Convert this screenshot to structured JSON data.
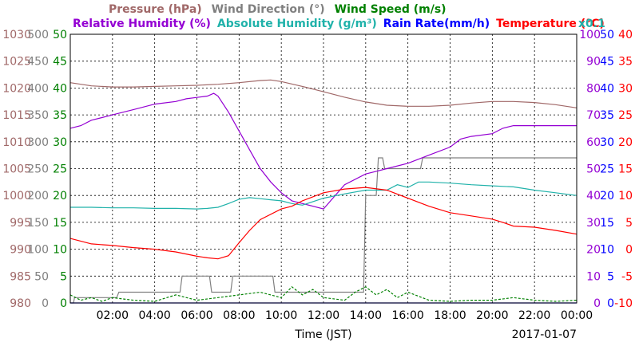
{
  "chart_data": {
    "type": "line",
    "date": "2017-01-07",
    "xlabel": "Time (JST)",
    "x_ticks": [
      "02:00",
      "04:00",
      "06:00",
      "08:00",
      "10:00",
      "12:00",
      "14:00",
      "16:00",
      "18:00",
      "20:00",
      "22:00",
      "00:00"
    ],
    "xlim_hours": [
      0,
      24
    ],
    "grid": true,
    "legend_row1": [
      {
        "text": "Pressure (hPa)",
        "color": "#a06868"
      },
      {
        "text": "Wind Direction (°)",
        "color": "#808080"
      },
      {
        "text": "Wind Speed (m/s)",
        "color": "#008000"
      }
    ],
    "legend_row2": [
      {
        "text": "Relative Humidity (%)",
        "color": "#9400d3"
      },
      {
        "text": "Absolute Humidity (g/m³)",
        "color": "#20b2aa"
      },
      {
        "text": "Rain Rate(mm/h)",
        "color": "#0000ff"
      },
      {
        "text": "Temperature (°C)",
        "color": "#ff0000"
      },
      {
        "text": "x0.1",
        "color": "#20b2aa"
      }
    ],
    "axes": {
      "pressure": {
        "ticks": [
          "1030",
          "1025",
          "1020",
          "1015",
          "1010",
          "1005",
          "1000",
          "995",
          "990",
          "985",
          "980"
        ],
        "ylim": [
          980,
          1030
        ],
        "color": "#a06868"
      },
      "wind_direction": {
        "ticks": [
          "500",
          "450",
          "400",
          "350",
          "300",
          "250",
          "200",
          "150",
          "100",
          "50",
          "0"
        ],
        "ylim": [
          0,
          500
        ],
        "color": "#808080"
      },
      "wind_speed": {
        "ticks": [
          "50",
          "45",
          "40",
          "35",
          "30",
          "25",
          "20",
          "15",
          "10",
          "5",
          "0"
        ],
        "ylim": [
          0,
          50
        ],
        "color": "#008000"
      },
      "relative_humidity": {
        "ticks": [
          "100",
          "90",
          "80",
          "70",
          "60",
          "50",
          "40",
          "30",
          "20",
          "10",
          "0"
        ],
        "ylim": [
          0,
          100
        ],
        "color": "#9400d3"
      },
      "rain_rate": {
        "ticks": [
          "50",
          "45",
          "40",
          "35",
          "30",
          "25",
          "20",
          "15",
          "10",
          "5",
          "0"
        ],
        "ylim": [
          0,
          50
        ],
        "color": "#0000ff"
      },
      "temperature": {
        "ticks": [
          "40",
          "35",
          "30",
          "25",
          "20",
          "15",
          "10",
          "5",
          "0",
          "-5",
          "-10"
        ],
        "ylim": [
          -10,
          40
        ],
        "color": "#ff0000"
      }
    },
    "series": [
      {
        "name": "Pressure (hPa)",
        "axis": "pressure",
        "color": "#a06868",
        "x": [
          0,
          1,
          2,
          3,
          4,
          5,
          6,
          7,
          8,
          9,
          9.5,
          10,
          11,
          12,
          13,
          14,
          15,
          16,
          17,
          18,
          19,
          20,
          21,
          22,
          23,
          24
        ],
        "y": [
          1021,
          1020.4,
          1020.2,
          1020.2,
          1020.3,
          1020.4,
          1020.5,
          1020.7,
          1021.0,
          1021.4,
          1021.5,
          1021.2,
          1020.3,
          1019.3,
          1018.3,
          1017.4,
          1016.8,
          1016.6,
          1016.6,
          1016.8,
          1017.2,
          1017.5,
          1017.5,
          1017.3,
          1016.9,
          1016.3
        ]
      },
      {
        "name": "Wind Direction (°)",
        "axis": "wind_direction",
        "color": "#808080",
        "x": [
          0,
          0.15,
          0.2,
          2.2,
          2.3,
          5.2,
          5.3,
          6.6,
          6.7,
          7.6,
          7.7,
          9.6,
          9.7,
          13.9,
          14.0,
          14.5,
          14.6,
          14.8,
          14.9,
          16.6,
          16.7,
          20.7,
          20.8,
          24
        ],
        "y": [
          0,
          0,
          10,
          10,
          20,
          20,
          50,
          50,
          20,
          20,
          50,
          50,
          20,
          20,
          200,
          200,
          270,
          270,
          250,
          250,
          270,
          270,
          270,
          270
        ]
      },
      {
        "name": "Wind Speed (m/s)",
        "axis": "wind_speed",
        "color": "#008000",
        "x": [
          0,
          0.5,
          1,
          1.5,
          2,
          3,
          4,
          5,
          6,
          7,
          8,
          9,
          10,
          10.5,
          11,
          11.5,
          12,
          13,
          13.5,
          14,
          14.5,
          15,
          15.5,
          16,
          17,
          18,
          19,
          20,
          21,
          22,
          23,
          24
        ],
        "y": [
          1.5,
          0.5,
          1,
          0.3,
          1,
          0.5,
          0.3,
          1.5,
          0.5,
          1,
          1.5,
          2,
          1,
          3,
          1.5,
          2.5,
          1,
          0.5,
          2,
          3,
          1.5,
          2.5,
          1,
          2,
          0.5,
          0.3,
          0.5,
          0.5,
          1,
          0.5,
          0.3,
          0.5
        ]
      },
      {
        "name": "Relative Humidity (%)",
        "axis": "relative_humidity",
        "color": "#9400d3",
        "x": [
          0,
          0.5,
          1,
          1.5,
          2,
          3,
          4,
          5,
          5.5,
          6,
          6.5,
          6.8,
          7,
          7.5,
          8,
          8.5,
          9,
          9.5,
          10,
          10.5,
          11,
          12,
          13,
          14,
          14.5,
          15,
          16,
          17,
          18,
          18.5,
          19,
          20,
          20.5,
          21,
          22,
          23,
          24
        ],
        "y": [
          65,
          66,
          68,
          69,
          70,
          72,
          74,
          75,
          76,
          76.5,
          77,
          78,
          77,
          71,
          64,
          57,
          50,
          45,
          41,
          38,
          37,
          35,
          44,
          48,
          49,
          50,
          52,
          55,
          58,
          61,
          62,
          63,
          65,
          66,
          66,
          66,
          66
        ]
      },
      {
        "name": "Absolute Humidity (g/m³)",
        "axis": "wind_direction",
        "color": "#20b2aa",
        "x": [
          0,
          1,
          2,
          3,
          4,
          5,
          6,
          6.5,
          7,
          7.5,
          8,
          8.5,
          9,
          9.5,
          10,
          10.5,
          11,
          12,
          13,
          14,
          15,
          15.5,
          16,
          16.5,
          17,
          18,
          19,
          20,
          21,
          22,
          23,
          24
        ],
        "y": [
          178,
          178,
          177,
          177,
          176,
          176,
          175,
          176,
          178,
          185,
          193,
          196,
          194,
          192,
          190,
          185,
          182,
          195,
          203,
          210,
          210,
          220,
          215,
          225,
          225,
          223,
          220,
          218,
          216,
          210,
          205,
          200
        ]
      },
      {
        "name": "Rain Rate(mm/h)",
        "axis": "rain_rate",
        "color": "#0000ff",
        "x": [
          0,
          24
        ],
        "y": [
          0,
          0
        ]
      },
      {
        "name": "Temperature (°C)",
        "axis": "temperature",
        "color": "#ff0000",
        "x": [
          0,
          1,
          2,
          3,
          4,
          5,
          6,
          6.5,
          7,
          7.5,
          8,
          8.5,
          9,
          10,
          10.5,
          11,
          12,
          13,
          14,
          15,
          16,
          17,
          18,
          19,
          20,
          20.5,
          21,
          22,
          23,
          24
        ],
        "y": [
          2,
          1,
          0.7,
          0.3,
          0,
          -0.5,
          -1.3,
          -1.6,
          -1.8,
          -1.2,
          1.2,
          3.5,
          5.5,
          7.5,
          8,
          9,
          10.5,
          11.2,
          11.5,
          11,
          9.5,
          8,
          6.8,
          6.2,
          5.6,
          5,
          4.3,
          4.1,
          3.5,
          2.8
        ]
      }
    ]
  }
}
